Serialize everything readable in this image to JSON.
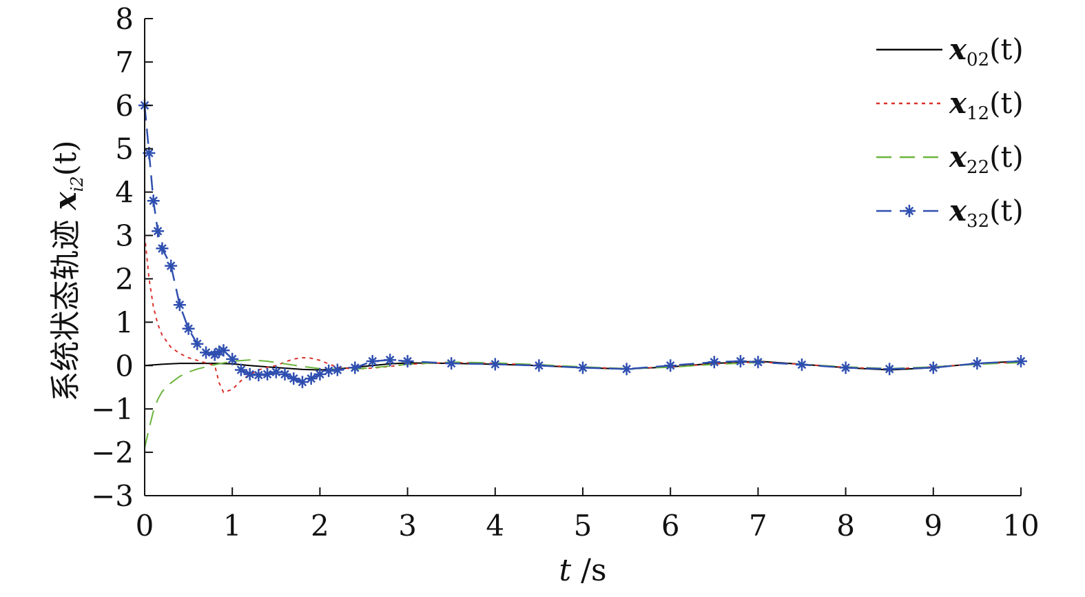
{
  "chart_data": {
    "type": "line",
    "title": "",
    "xlabel": "t /s",
    "ylabel": "系统状态轨迹 x_i2(t)",
    "ylabel_parts": {
      "text": "系统状态轨迹 ",
      "var": "x",
      "sub": "i2",
      "arg": "(t)"
    },
    "xlabel_parts": {
      "var": "t",
      "unit": " /s"
    },
    "xlim": [
      0,
      10
    ],
    "ylim": [
      -3,
      8
    ],
    "x_ticks": [
      "0",
      "1",
      "2",
      "3",
      "4",
      "5",
      "6",
      "7",
      "8",
      "9",
      "10"
    ],
    "y_ticks": [
      "−3",
      "−2",
      "−1",
      "0",
      "1",
      "2",
      "3",
      "4",
      "5",
      "6",
      "7",
      "8"
    ],
    "grid": false,
    "legend_position": "top-right",
    "series": [
      {
        "name": "x02(t)",
        "legend": {
          "var": "x",
          "sub": "02",
          "arg": "(t)"
        },
        "color": "#000000",
        "style": "solid",
        "marker": "none",
        "x": [
          0,
          0.2,
          0.4,
          0.6,
          0.8,
          1.0,
          1.2,
          1.4,
          1.6,
          1.8,
          2.0,
          2.2,
          2.4,
          2.6,
          2.8,
          3.0,
          3.5,
          4.0,
          4.5,
          5.0,
          5.5,
          6.0,
          6.5,
          7.0,
          7.5,
          8.0,
          8.5,
          9.0,
          9.5,
          10.0
        ],
        "y": [
          0.0,
          0.03,
          0.05,
          0.05,
          0.05,
          0.04,
          0.0,
          -0.03,
          -0.06,
          -0.09,
          -0.1,
          -0.08,
          -0.04,
          0.0,
          0.04,
          0.06,
          0.05,
          0.03,
          0.0,
          -0.05,
          -0.08,
          -0.03,
          0.05,
          0.1,
          0.03,
          -0.05,
          -0.1,
          -0.05,
          0.05,
          0.1
        ]
      },
      {
        "name": "x12(t)",
        "legend": {
          "var": "x",
          "sub": "12",
          "arg": "(t)"
        },
        "color": "#d9302a",
        "style": "dotted",
        "marker": "none",
        "x": [
          0,
          0.05,
          0.1,
          0.15,
          0.2,
          0.3,
          0.4,
          0.5,
          0.6,
          0.7,
          0.8,
          0.85,
          0.9,
          1.0,
          1.1,
          1.2,
          1.3,
          1.4,
          1.5,
          1.6,
          1.7,
          1.8,
          1.9,
          2.0,
          2.1,
          2.2,
          2.4,
          2.6,
          2.8,
          3.0,
          3.5,
          4.0,
          4.5,
          5.0,
          5.5,
          6.0,
          6.5,
          7.0,
          7.5,
          8.0,
          8.5,
          9.0,
          9.5,
          10.0
        ],
        "y": [
          3.0,
          2.0,
          1.35,
          0.95,
          0.7,
          0.42,
          0.28,
          0.18,
          0.12,
          0.06,
          0.0,
          -0.4,
          -0.62,
          -0.55,
          -0.35,
          -0.2,
          -0.1,
          -0.04,
          0.0,
          0.08,
          0.15,
          0.18,
          0.17,
          0.12,
          0.04,
          -0.04,
          -0.08,
          -0.06,
          -0.02,
          0.03,
          0.07,
          0.05,
          0.01,
          -0.04,
          -0.07,
          -0.03,
          0.04,
          0.08,
          0.03,
          -0.04,
          -0.08,
          -0.03,
          0.04,
          0.08
        ]
      },
      {
        "name": "x22(t)",
        "legend": {
          "var": "x",
          "sub": "22",
          "arg": "(t)"
        },
        "color": "#6ab43a",
        "style": "dashed",
        "marker": "none",
        "x": [
          0,
          0.05,
          0.1,
          0.15,
          0.2,
          0.3,
          0.4,
          0.5,
          0.6,
          0.7,
          0.8,
          0.9,
          1.0,
          1.2,
          1.4,
          1.6,
          1.8,
          2.0,
          2.2,
          2.4,
          2.6,
          2.8,
          3.0,
          3.5,
          4.0,
          4.5,
          5.0,
          5.5,
          6.0,
          6.5,
          7.0,
          7.5,
          8.0,
          8.5,
          9.0,
          9.5,
          10.0
        ],
        "y": [
          -1.9,
          -1.45,
          -1.05,
          -0.78,
          -0.6,
          -0.4,
          -0.25,
          -0.15,
          -0.08,
          -0.03,
          0.02,
          0.06,
          0.1,
          0.13,
          0.1,
          0.04,
          -0.02,
          -0.07,
          -0.09,
          -0.08,
          -0.05,
          -0.01,
          0.03,
          0.08,
          0.06,
          0.02,
          -0.03,
          -0.07,
          -0.04,
          0.03,
          0.07,
          0.03,
          -0.03,
          -0.07,
          -0.03,
          0.03,
          0.07
        ]
      },
      {
        "name": "x32(t)",
        "legend": {
          "var": "x",
          "sub": "32",
          "arg": "(t)"
        },
        "color": "#2f4fb0",
        "style": "dashed",
        "marker": "star",
        "x": [
          0,
          0.05,
          0.1,
          0.15,
          0.2,
          0.3,
          0.4,
          0.5,
          0.6,
          0.7,
          0.8,
          0.85,
          0.9,
          1.0,
          1.1,
          1.2,
          1.3,
          1.4,
          1.5,
          1.6,
          1.7,
          1.8,
          1.9,
          2.0,
          2.1,
          2.2,
          2.4,
          2.6,
          2.8,
          3.0,
          3.5,
          4.0,
          4.5,
          5.0,
          5.5,
          6.0,
          6.5,
          6.8,
          7.0,
          7.5,
          8.0,
          8.5,
          9.0,
          9.5,
          10.0
        ],
        "y": [
          6.0,
          4.9,
          3.8,
          3.1,
          2.7,
          2.3,
          1.4,
          0.85,
          0.5,
          0.3,
          0.25,
          0.32,
          0.35,
          0.15,
          -0.1,
          -0.2,
          -0.22,
          -0.2,
          -0.15,
          -0.2,
          -0.3,
          -0.38,
          -0.3,
          -0.2,
          -0.12,
          -0.1,
          -0.05,
          0.1,
          0.13,
          0.1,
          0.05,
          0.03,
          0.0,
          -0.05,
          -0.08,
          0.0,
          0.08,
          0.1,
          0.08,
          0.02,
          -0.05,
          -0.08,
          -0.05,
          0.05,
          0.1
        ]
      }
    ]
  }
}
